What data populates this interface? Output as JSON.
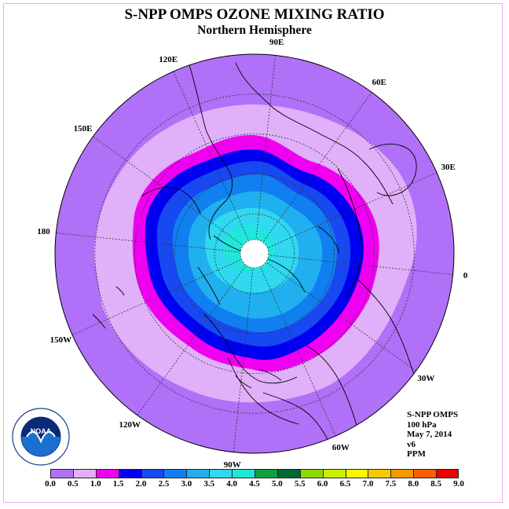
{
  "header": {
    "title": "S-NPP OMPS OZONE MIXING RATIO",
    "subtitle": "Northern Hemisphere"
  },
  "longitude_labels": [
    {
      "label": "90E",
      "deg": 90
    },
    {
      "label": "60E",
      "deg": 60
    },
    {
      "label": "30E",
      "deg": 30
    },
    {
      "label": "0",
      "deg": 0
    },
    {
      "label": "30W",
      "deg": -30
    },
    {
      "label": "60W",
      "deg": -60
    },
    {
      "label": "90W",
      "deg": -90
    },
    {
      "label": "120W",
      "deg": -120
    },
    {
      "label": "150W",
      "deg": -150
    },
    {
      "label": "180",
      "deg": 180
    },
    {
      "label": "150E",
      "deg": 150
    },
    {
      "label": "120E",
      "deg": 120
    }
  ],
  "info": {
    "instrument": "S-NPP OMPS",
    "level": "100 hPa",
    "date": "May 7, 2014",
    "version": "v6",
    "units": "PPM"
  },
  "colorbar": {
    "ticks": [
      "0.0",
      "0.5",
      "1.0",
      "1.5",
      "2.0",
      "2.5",
      "3.0",
      "3.5",
      "4.0",
      "4.5",
      "5.0",
      "5.5",
      "6.0",
      "6.5",
      "7.0",
      "7.5",
      "8.0",
      "8.5",
      "9.0"
    ],
    "colors": [
      "#b070f8",
      "#e0b0f8",
      "#f000f0",
      "#0000f0",
      "#1848f0",
      "#1080f0",
      "#20b0f0",
      "#30d8f0",
      "#20e8d8",
      "#10a040",
      "#006830",
      "#90d800",
      "#c8f000",
      "#f8f800",
      "#f8c800",
      "#f89800",
      "#f86000",
      "#f00000",
      "#905030"
    ]
  },
  "map": {
    "pole_fill": "#ffffff",
    "background_fill": "#b070f8"
  },
  "logo": {
    "text": "NOAA",
    "ring_text": "NATIONAL OCEANIC AND ATMOSPHERIC ADMINISTRATION · U.S. DEPARTMENT OF COMMERCE"
  }
}
